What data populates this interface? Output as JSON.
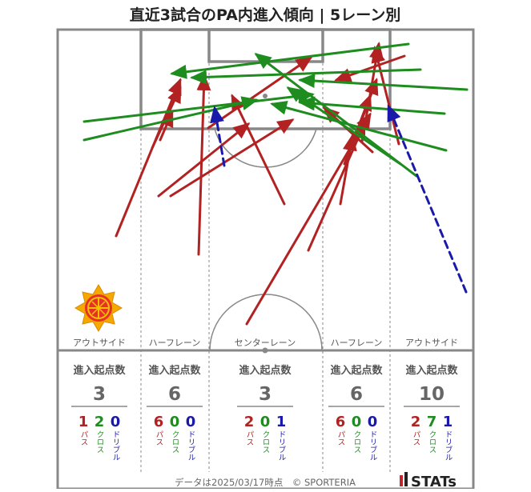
{
  "title": "直近3試合のPA内進入傾向 | 5レーン別",
  "footer": {
    "note": "データは2025/03/17時点　© SPORTERIA",
    "brand": "STATs"
  },
  "team_crest": "team-crest-sun-emblem",
  "labels": {
    "count_heading": "進入起点数",
    "pass": "パス",
    "cross": "クロス",
    "dribble": "ドリブル"
  },
  "lanes": [
    {
      "name": "アウトサイド",
      "total": "3",
      "pass": "1",
      "cross": "2",
      "dribble": "0"
    },
    {
      "name": "ハーフレーン",
      "total": "6",
      "pass": "6",
      "cross": "0",
      "dribble": "0"
    },
    {
      "name": "センターレーン",
      "total": "3",
      "pass": "2",
      "cross": "0",
      "dribble": "1"
    },
    {
      "name": "ハーフレーン",
      "total": "6",
      "pass": "6",
      "cross": "0",
      "dribble": "0"
    },
    {
      "name": "アウトサイド",
      "total": "10",
      "pass": "2",
      "cross": "7",
      "dribble": "1"
    }
  ],
  "colors": {
    "pass": "#b22222",
    "cross": "#1e8c1e",
    "dribble": "#1a1aaa",
    "pitch_line": "#888888"
  },
  "chart_data": {
    "type": "pitch-arrows",
    "lane_order": [
      "アウトサイド",
      "ハーフレーン",
      "センターレーン",
      "ハーフレーン",
      "アウトサイド"
    ],
    "lane_counts": [
      {
        "lane": "アウトサイド",
        "total": 3,
        "pass": 1,
        "cross": 2,
        "dribble": 0
      },
      {
        "lane": "ハーフレーン",
        "total": 6,
        "pass": 6,
        "cross": 0,
        "dribble": 0
      },
      {
        "lane": "センターレーン",
        "total": 3,
        "pass": 2,
        "cross": 0,
        "dribble": 1
      },
      {
        "lane": "ハーフレーン",
        "total": 6,
        "pass": 6,
        "cross": 0,
        "dribble": 0
      },
      {
        "lane": "アウトサイド",
        "total": 10,
        "pass": 2,
        "cross": 7,
        "dribble": 1
      }
    ],
    "arrows": [
      {
        "kind": "pass",
        "from": [
          145,
          295
        ],
        "to": [
          225,
          100
        ]
      },
      {
        "kind": "pass",
        "from": [
          190,
          185
        ],
        "to": [
          225,
          110
        ]
      },
      {
        "kind": "pass",
        "from": [
          200,
          175
        ],
        "to": [
          215,
          140
        ]
      },
      {
        "kind": "pass",
        "from": [
          248,
          318
        ],
        "to": [
          255,
          95
        ]
      },
      {
        "kind": "pass",
        "from": [
          198,
          245
        ],
        "to": [
          310,
          155
        ]
      },
      {
        "kind": "pass",
        "from": [
          213,
          245
        ],
        "to": [
          365,
          150
        ]
      },
      {
        "kind": "pass",
        "from": [
          355,
          255
        ],
        "to": [
          290,
          120
        ]
      },
      {
        "kind": "pass",
        "from": [
          260,
          160
        ],
        "to": [
          388,
          72
        ]
      },
      {
        "kind": "pass",
        "from": [
          308,
          405
        ],
        "to": [
          462,
          143
        ]
      },
      {
        "kind": "pass",
        "from": [
          385,
          313
        ],
        "to": [
          455,
          155
        ]
      },
      {
        "kind": "pass",
        "from": [
          425,
          255
        ],
        "to": [
          440,
          170
        ]
      },
      {
        "kind": "pass",
        "from": [
          430,
          205
        ],
        "to": [
          462,
          120
        ]
      },
      {
        "kind": "pass",
        "from": [
          440,
          182
        ],
        "to": [
          470,
          100
        ]
      },
      {
        "kind": "pass",
        "from": [
          452,
          177
        ],
        "to": [
          473,
          55
        ]
      },
      {
        "kind": "pass",
        "from": [
          498,
          180
        ],
        "to": [
          468,
          60
        ]
      },
      {
        "kind": "pass",
        "from": [
          505,
          70
        ],
        "to": [
          420,
          100
        ]
      },
      {
        "kind": "pass",
        "from": [
          465,
          190
        ],
        "to": [
          405,
          135
        ]
      },
      {
        "kind": "cross",
        "from": [
          510,
          55
        ],
        "to": [
          215,
          92
        ]
      },
      {
        "kind": "cross",
        "from": [
          525,
          87
        ],
        "to": [
          240,
          97
        ]
      },
      {
        "kind": "cross",
        "from": [
          583,
          112
        ],
        "to": [
          375,
          100
        ]
      },
      {
        "kind": "cross",
        "from": [
          105,
          152
        ],
        "to": [
          390,
          118
        ]
      },
      {
        "kind": "cross",
        "from": [
          105,
          175
        ],
        "to": [
          320,
          125
        ]
      },
      {
        "kind": "cross",
        "from": [
          557,
          188
        ],
        "to": [
          340,
          130
        ]
      },
      {
        "kind": "cross",
        "from": [
          520,
          220
        ],
        "to": [
          320,
          68
        ]
      },
      {
        "kind": "cross",
        "from": [
          555,
          142
        ],
        "to": [
          375,
          128
        ]
      },
      {
        "kind": "cross",
        "from": [
          500,
          205
        ],
        "to": [
          360,
          110
        ]
      },
      {
        "kind": "dribble",
        "from": [
          280,
          207
        ],
        "to": [
          268,
          135
        ]
      },
      {
        "kind": "dribble",
        "from": [
          582,
          365
        ],
        "to": [
          485,
          133
        ]
      }
    ]
  }
}
